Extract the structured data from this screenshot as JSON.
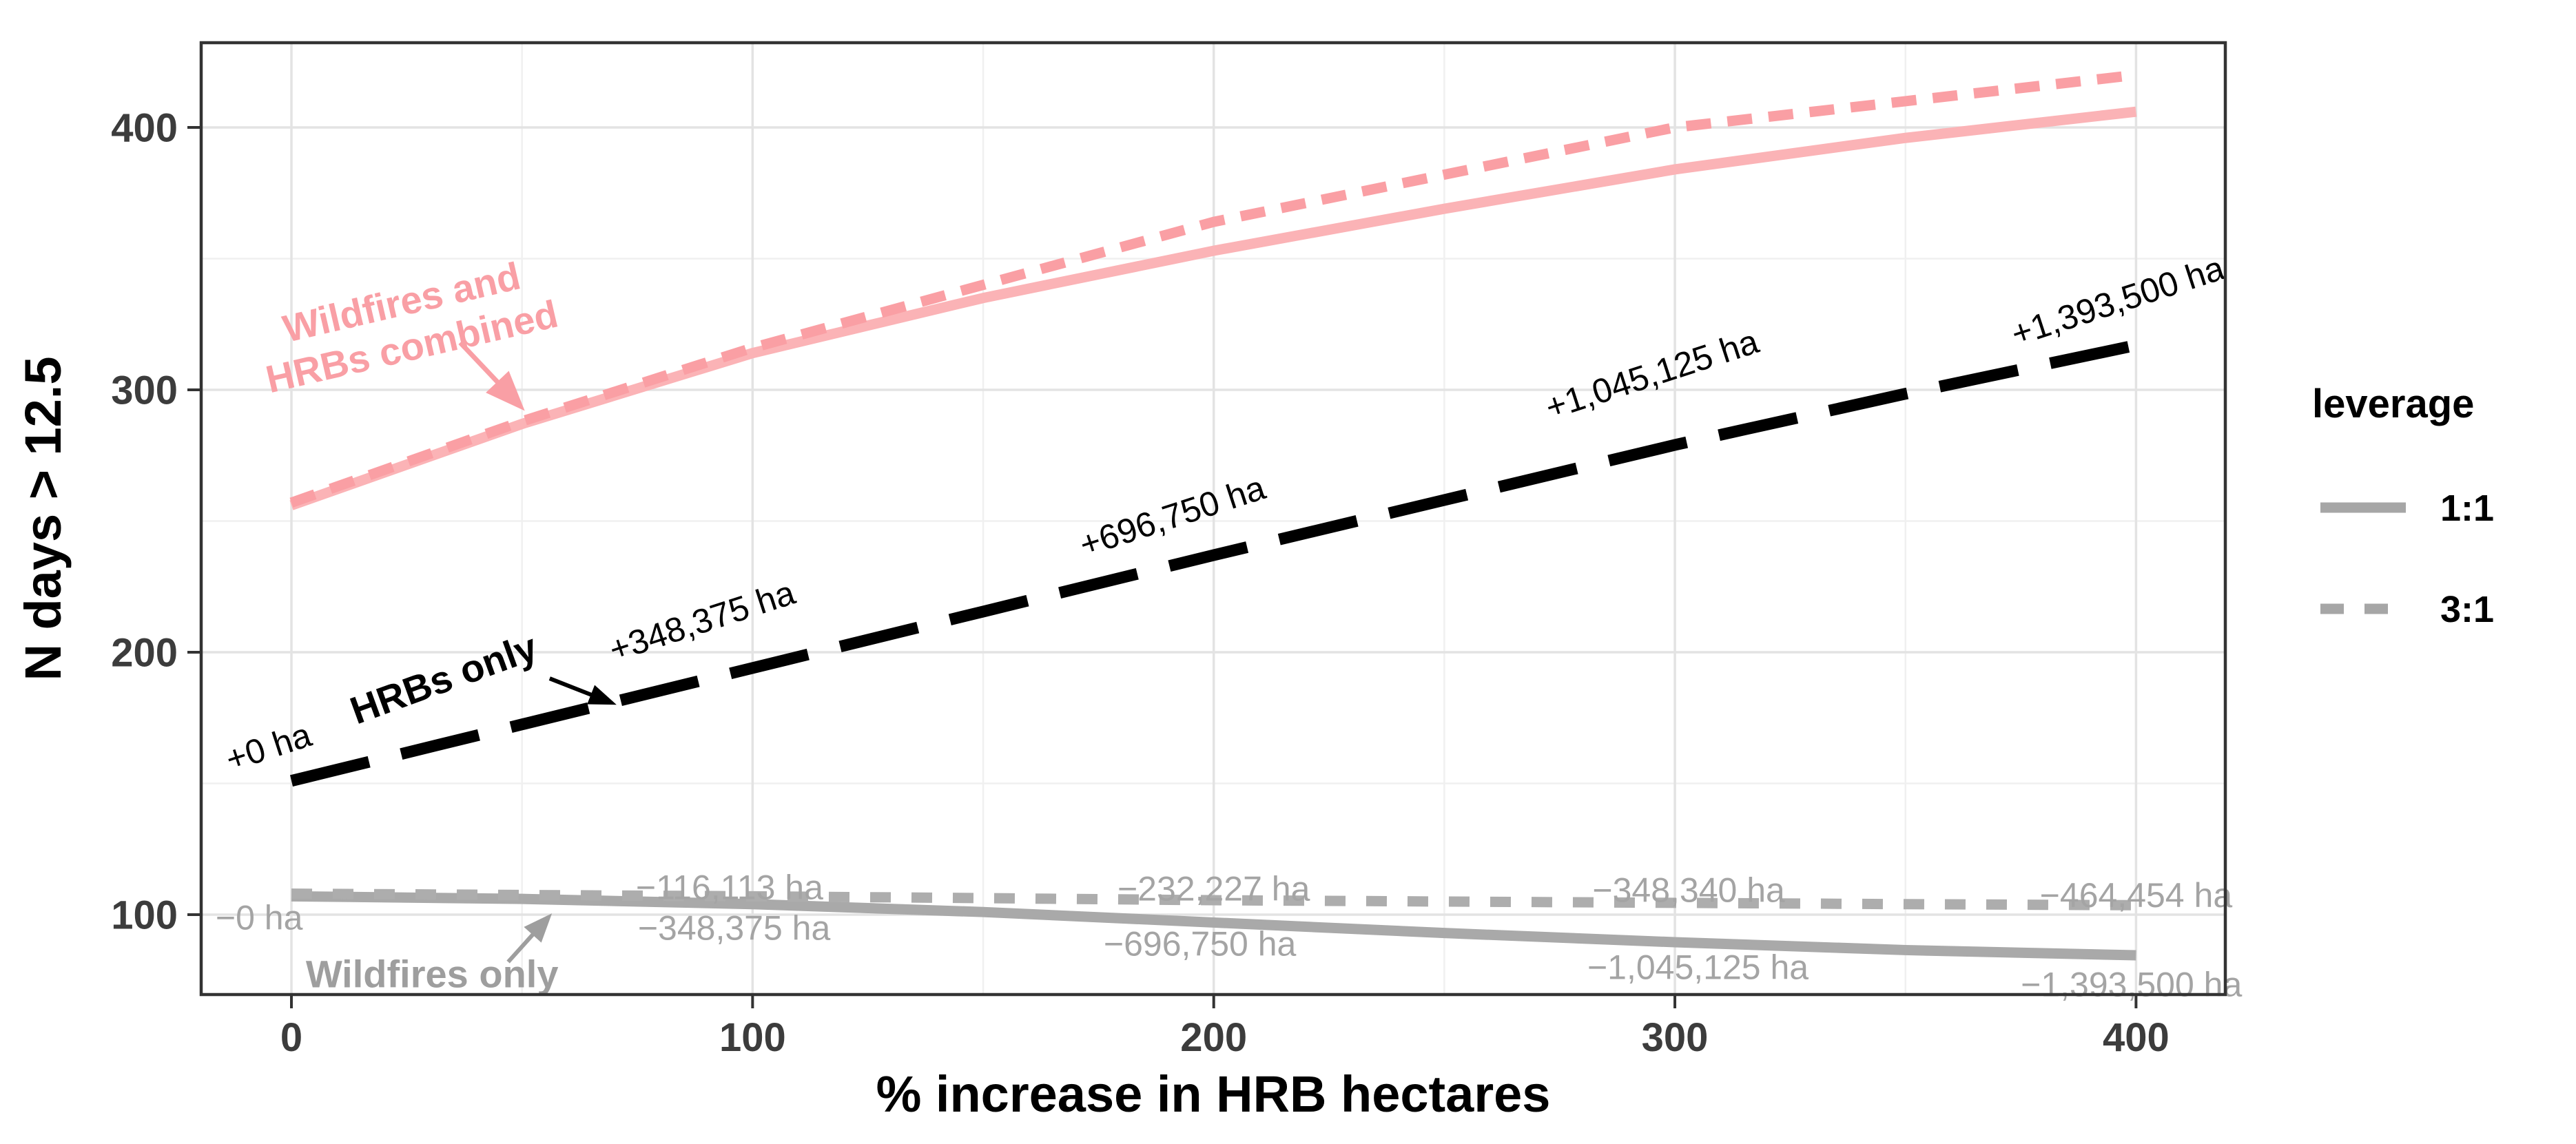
{
  "chart_data": {
    "type": "line",
    "title": "",
    "xlabel": "% increase in HRB hectares",
    "ylabel": "N days > 12.5",
    "x_ticks": [
      0,
      100,
      200,
      300,
      400
    ],
    "y_ticks": [
      100,
      200,
      300,
      400
    ],
    "x_minor_ticks": [
      50,
      150,
      250,
      350
    ],
    "y_minor_ticks": [
      150,
      250,
      350
    ],
    "xlim": [
      -19.6,
      419.3
    ],
    "ylim": [
      69.6,
      432.3
    ],
    "grid": "major+minor on, white panel, dark border",
    "x": [
      0,
      50,
      100,
      150,
      200,
      250,
      300,
      350,
      400
    ],
    "series": [
      {
        "name": "Wildfires and HRBs combined (1:1)",
        "group": "combined",
        "leverage": "1:1",
        "dash": "solid",
        "color": "#FBB3B6",
        "width": 15,
        "values": [
          256,
          287,
          314,
          335,
          353,
          369,
          384,
          396,
          406
        ]
      },
      {
        "name": "Wildfires and HRBs combined (3:1)",
        "group": "combined",
        "leverage": "3:1",
        "dash": "dashed",
        "color": "#FA9FA4",
        "width": 15,
        "values": [
          257,
          288,
          316,
          340,
          364,
          382,
          400,
          410,
          420
        ]
      },
      {
        "name": "Wildfires only (1:1)",
        "group": "wildfires",
        "leverage": "1:1",
        "dash": "solid",
        "color": "#A9A9A9",
        "width": 15,
        "values": [
          107,
          106,
          104,
          101,
          97,
          93,
          89.5,
          86.5,
          84.5
        ]
      },
      {
        "name": "Wildfires only (3:1)",
        "group": "wildfires",
        "leverage": "3:1",
        "dash": "dotted",
        "color": "#ADADAD",
        "width": 15,
        "values": [
          108,
          107.5,
          107,
          106.3,
          105.5,
          105,
          104.5,
          104,
          103.6
        ]
      },
      {
        "name": "HRBs only",
        "group": "hrbs",
        "leverage": "",
        "dash": "longdash",
        "color": "#000000",
        "width": 17,
        "values": [
          151,
          172.5,
          194,
          215.5,
          237,
          258,
          279,
          298.5,
          317
        ]
      }
    ],
    "legend": {
      "title": "leverage",
      "position": "right",
      "swatch_color": "#A6A6A6",
      "items": [
        {
          "label": "1:1",
          "dash": "solid"
        },
        {
          "label": "3:1",
          "dash": "dashed"
        }
      ]
    },
    "annotations": {
      "series_labels": [
        {
          "id": "combined-label",
          "text_lines": [
            "Wildfires and",
            "HRBs combined"
          ],
          "color": "#F99FA5",
          "x": 25,
          "y": 325,
          "rotation": -13,
          "bold": true,
          "arrow": {
            "x1": 36.6,
            "y1": 318,
            "x2": 50.6,
            "y2": 292,
            "stroke": 7,
            "head_l": 58,
            "head_w": 46
          }
        },
        {
          "id": "hrbs-label",
          "text_lines": [
            "HRBs only"
          ],
          "color": "#000000",
          "x": 33,
          "y": 190,
          "rotation": -20,
          "bold": true,
          "arrow": {
            "x1": 56,
            "y1": 190,
            "x2": 70.5,
            "y2": 180,
            "stroke": 6,
            "head_l": 40,
            "head_w": 30
          }
        },
        {
          "id": "wildfires-label",
          "text_lines": [
            "Wildfires only"
          ],
          "color": "#9E9E9E",
          "x": 30.5,
          "y": 77.5,
          "rotation": 0,
          "bold": true,
          "arrow": {
            "x1": 47,
            "y1": 82,
            "x2": 56.5,
            "y2": 100.5,
            "stroke": 6,
            "head_l": 42,
            "head_w": 34
          }
        }
      ],
      "point_labels": [
        {
          "text": "+0 ha",
          "color": "#000000",
          "x": -5,
          "y": 164,
          "rotation": -18
        },
        {
          "text": "+348,375 ha",
          "color": "#000000",
          "x": 89,
          "y": 212,
          "rotation": -18
        },
        {
          "text": "+696,750 ha",
          "color": "#000000",
          "x": 191,
          "y": 252,
          "rotation": -18
        },
        {
          "text": "+1,045,125 ha",
          "color": "#000000",
          "x": 295,
          "y": 306,
          "rotation": -18
        },
        {
          "text": "+1,393,500 ha",
          "color": "#000000",
          "x": 396,
          "y": 334,
          "rotation": -18
        },
        {
          "text": "−0 ha",
          "color": "#A4A4A4",
          "x": -7,
          "y": 99,
          "rotation": 0
        },
        {
          "text": "−116,113 ha",
          "color": "#A4A4A4",
          "x": 95,
          "y": 110.5,
          "rotation": 0
        },
        {
          "text": "−348,375 ha",
          "color": "#A4A4A4",
          "x": 96,
          "y": 95,
          "rotation": 0
        },
        {
          "text": "−232,227 ha",
          "color": "#A4A4A4",
          "x": 200,
          "y": 110,
          "rotation": 0
        },
        {
          "text": "−696,750 ha",
          "color": "#A4A4A4",
          "x": 197,
          "y": 89,
          "rotation": 0
        },
        {
          "text": "−348,340 ha",
          "color": "#A4A4A4",
          "x": 303,
          "y": 109.5,
          "rotation": 0
        },
        {
          "text": "−1,045,125 ha",
          "color": "#A4A4A4",
          "x": 305,
          "y": 80,
          "rotation": 0
        },
        {
          "text": "−464,454 ha",
          "color": "#A4A4A4",
          "x": 400,
          "y": 107.5,
          "rotation": 0
        },
        {
          "text": "−1,393,500 ha",
          "color": "#A4A4A4",
          "x": 399,
          "y": 73.5,
          "rotation": 0
        }
      ]
    },
    "colors": {
      "panel_background": "#FFFFFF",
      "panel_border": "#333333",
      "grid_major": "#E3E3E3",
      "grid_minor": "#F0F0F0",
      "tick_text": "#3C3C3C",
      "axis_title_text": "#000000"
    }
  }
}
